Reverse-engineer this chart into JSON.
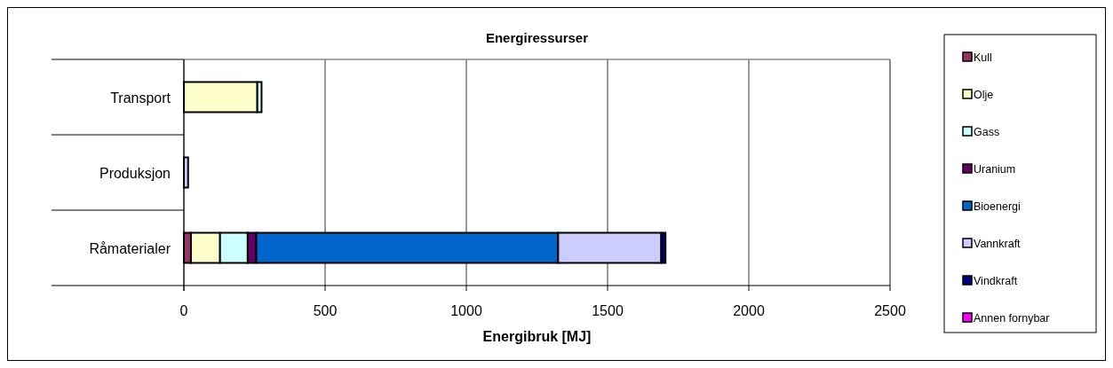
{
  "chart_data": {
    "type": "bar",
    "title": "Energiressurser",
    "xlabel": "Energibruk [MJ]",
    "orientation": "horizontal",
    "stacked": true,
    "categories": [
      "Transport",
      "Produksjon",
      "Råmaterialer"
    ],
    "series": [
      {
        "name": "Kull",
        "color": "#993366",
        "values": [
          0,
          0,
          25
        ]
      },
      {
        "name": "Olje",
        "color": "#ffffcc",
        "values": [
          260,
          0,
          103
        ]
      },
      {
        "name": "Gass",
        "color": "#ccffff",
        "values": [
          15,
          0,
          98
        ]
      },
      {
        "name": "Uranium",
        "color": "#660066",
        "values": [
          0,
          0,
          30
        ]
      },
      {
        "name": "Bioenergi",
        "color": "#0066cc",
        "values": [
          0,
          0,
          1069
        ]
      },
      {
        "name": "Vannkraft",
        "color": "#ccccff",
        "values": [
          0,
          15,
          365
        ]
      },
      {
        "name": "Vindkraft",
        "color": "#000080",
        "values": [
          0,
          0,
          15
        ]
      },
      {
        "name": "Annen fornybar",
        "color": "#ff00ff",
        "values": [
          0,
          0,
          0
        ]
      }
    ],
    "xlim": [
      0,
      2500
    ],
    "xticks": [
      0,
      500,
      1000,
      1500,
      2000,
      2500
    ],
    "grid": "x",
    "legend": "right"
  }
}
